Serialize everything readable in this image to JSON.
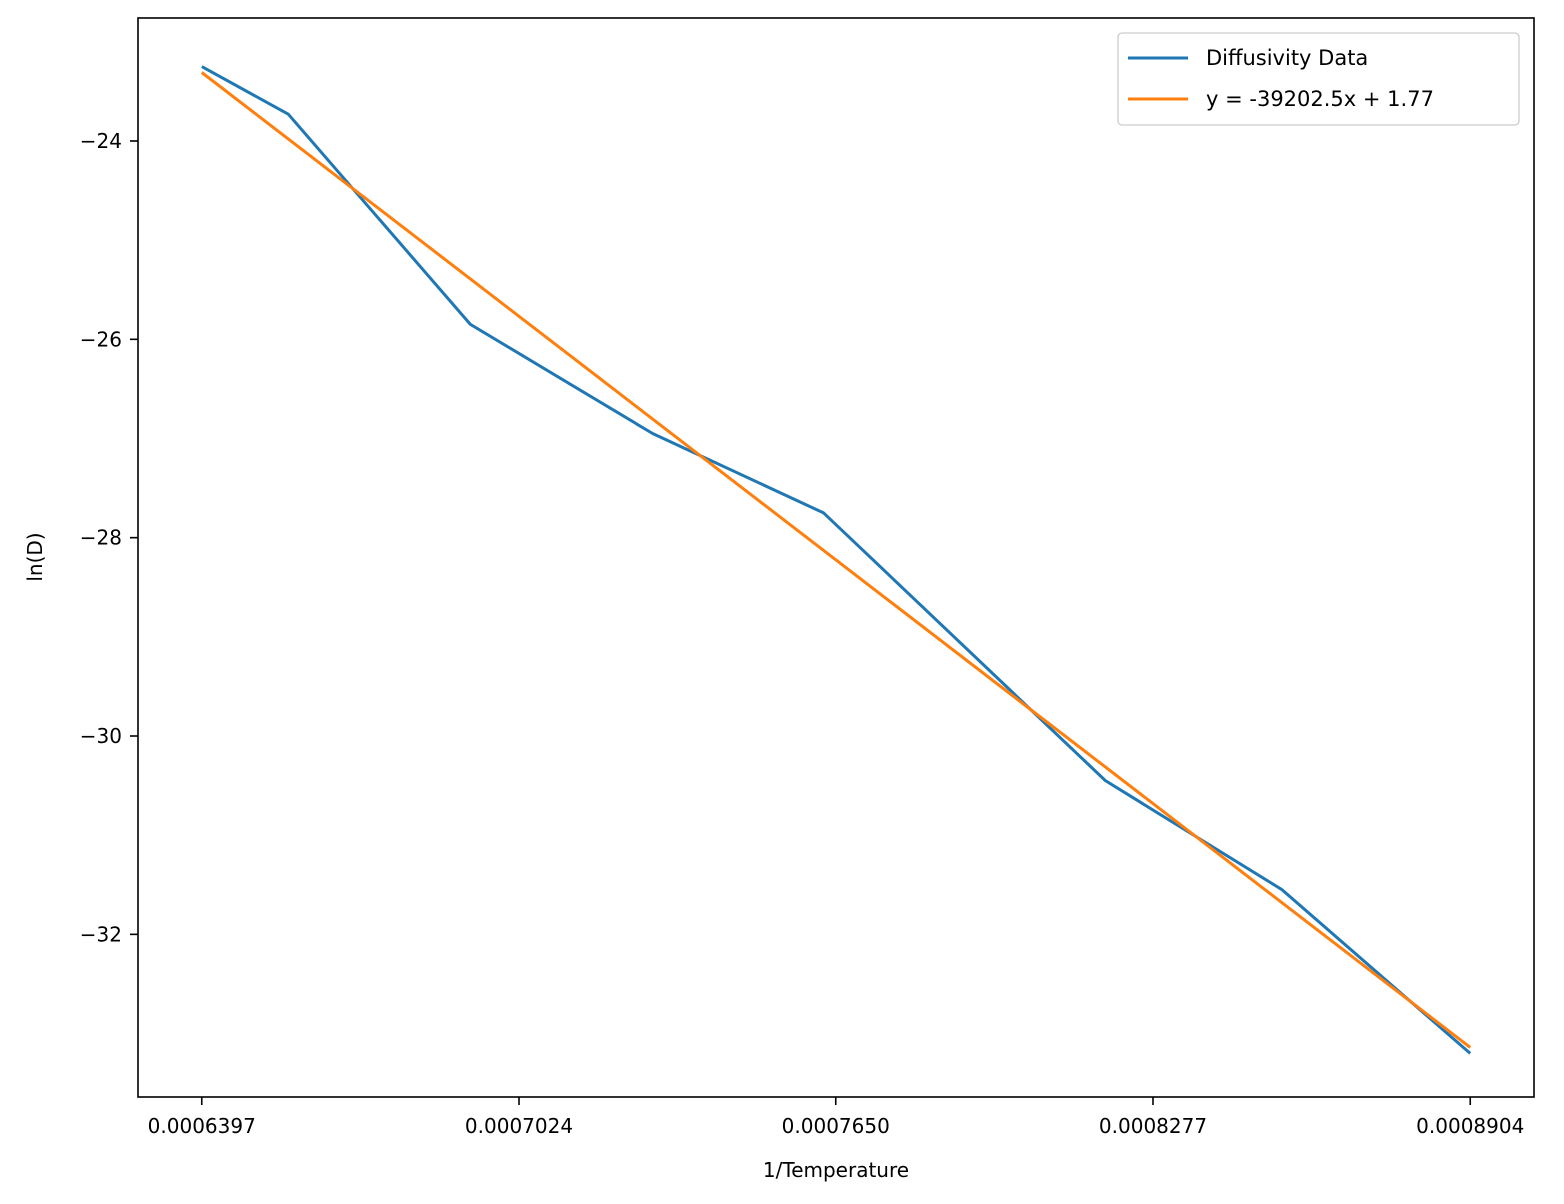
{
  "chart_data": {
    "type": "line",
    "xlabel": "1/Temperature",
    "ylabel": "ln(D)",
    "xticks": [
      "0.0006397",
      "0.0007024",
      "0.0007650",
      "0.0008277",
      "0.0008904"
    ],
    "xtick_values": [
      0.0006397,
      0.0007024,
      0.000765,
      0.0008277,
      0.0008904
    ],
    "yticks": [
      "−24",
      "−26",
      "−28",
      "−30",
      "−32"
    ],
    "ytick_values": [
      -24,
      -26,
      -28,
      -30,
      -32
    ],
    "xlim": [
      0.0006271,
      0.000903
    ],
    "ylim": [
      -33.64,
      -22.76
    ],
    "grid": false,
    "legend_position": "top-right",
    "series": [
      {
        "name": "Diffusivity Data",
        "color": "#1f77b4",
        "x": [
          0.0006397,
          0.0006568,
          0.0006928,
          0.0007288,
          0.0007626,
          0.0008183,
          0.0008532,
          0.0008904
        ],
        "y": [
          -23.25,
          -23.73,
          -25.85,
          -26.95,
          -27.75,
          -30.45,
          -31.55,
          -33.2
        ]
      },
      {
        "name": "y = -39202.5x + 1.77",
        "color": "#ff7f0e",
        "x": [
          0.0006397,
          0.0008904
        ],
        "y": [
          -23.31,
          -33.14
        ]
      }
    ]
  }
}
